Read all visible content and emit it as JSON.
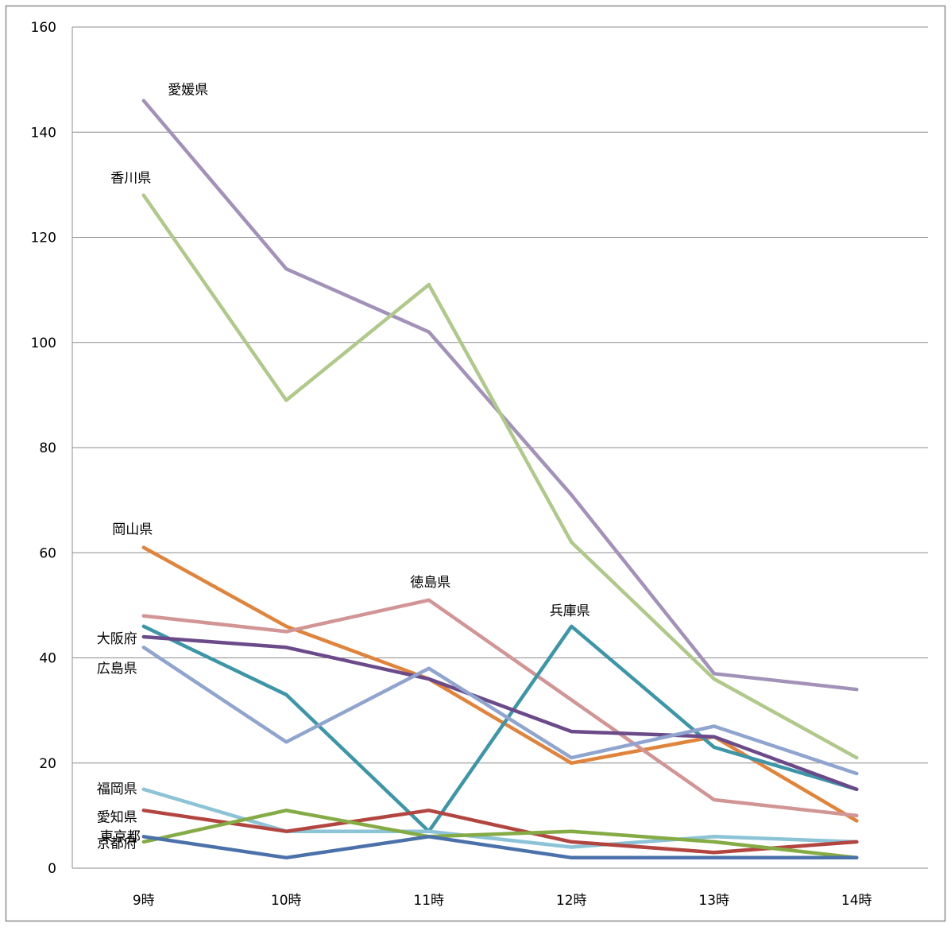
{
  "chart_data": {
    "type": "line",
    "title": "",
    "xlabel": "",
    "ylabel": "",
    "categories": [
      "9時",
      "10時",
      "11時",
      "12時",
      "13時",
      "14時"
    ],
    "ylim": [
      0,
      160
    ],
    "yticks": [
      0,
      20,
      40,
      60,
      80,
      100,
      120,
      140,
      160
    ],
    "grid": "horizontal",
    "legend": "none",
    "series": [
      {
        "name": "愛媛県",
        "color": "#a291b8",
        "values": [
          146,
          114,
          102,
          71,
          37,
          34
        ]
      },
      {
        "name": "香川県",
        "color": "#b0c98a",
        "values": [
          128,
          89,
          111,
          62,
          36,
          21
        ]
      },
      {
        "name": "岡山県",
        "color": "#e0843c",
        "values": [
          61,
          46,
          36,
          20,
          25,
          9
        ]
      },
      {
        "name": "徳島県",
        "color": "#d29596",
        "values": [
          48,
          45,
          51,
          32,
          13,
          10
        ]
      },
      {
        "name": "兵庫県",
        "color": "#3d96a8",
        "values": [
          46,
          33,
          7,
          46,
          23,
          15
        ]
      },
      {
        "name": "大阪府",
        "color": "#6b4a8a",
        "values": [
          44,
          42,
          36,
          26,
          25,
          15
        ]
      },
      {
        "name": "広島県",
        "color": "#8fa4cf",
        "values": [
          42,
          24,
          38,
          21,
          27,
          18
        ]
      },
      {
        "name": "福岡県",
        "color": "#8cc3d6",
        "values": [
          15,
          7,
          7,
          4,
          6,
          5
        ]
      },
      {
        "name": "愛知県",
        "color": "#b24540",
        "values": [
          11,
          7,
          11,
          5,
          3,
          5
        ]
      },
      {
        "name": "東京都",
        "color": "#85ab45",
        "values": [
          5,
          11,
          6,
          7,
          5,
          2
        ]
      },
      {
        "name": "京都府",
        "color": "#4a71aa",
        "values": [
          6,
          2,
          6,
          2,
          2,
          2
        ]
      }
    ]
  }
}
